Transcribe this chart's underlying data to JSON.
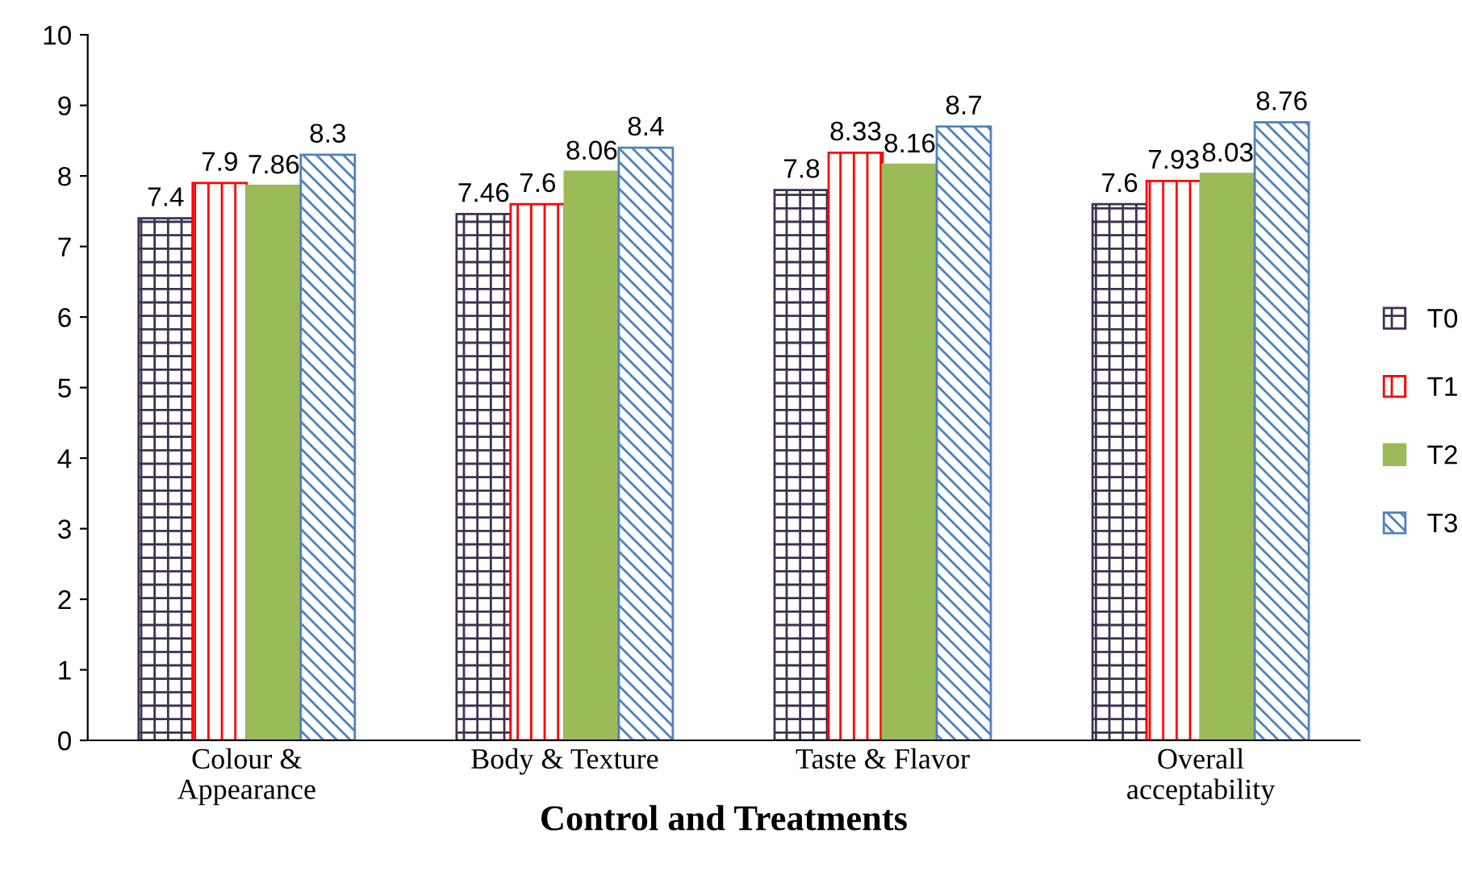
{
  "chart_data": {
    "type": "bar",
    "xlabel": "Control and Treatments",
    "categories": [
      "Colour &\nAppearance",
      "Body & Texture",
      "Taste & Flavor",
      "Overall\nacceptability"
    ],
    "series": [
      {
        "name": "T0",
        "color": "#3f3151",
        "values": [
          7.4,
          7.46,
          7.8,
          7.6
        ]
      },
      {
        "name": "T1",
        "color": "#ff0000",
        "values": [
          7.9,
          7.6,
          8.33,
          7.93
        ]
      },
      {
        "name": "T2",
        "color": "#9bbb59",
        "values": [
          7.86,
          8.06,
          8.16,
          8.03
        ]
      },
      {
        "name": "T3",
        "color": "#4f81bd",
        "values": [
          8.3,
          8.4,
          8.7,
          8.76
        ]
      }
    ],
    "ylim": [
      0,
      10
    ],
    "yticks": [
      0,
      1,
      2,
      3,
      4,
      5,
      6,
      7,
      8,
      9,
      10
    ],
    "grid": false,
    "legend": "right",
    "data_labels": true
  }
}
